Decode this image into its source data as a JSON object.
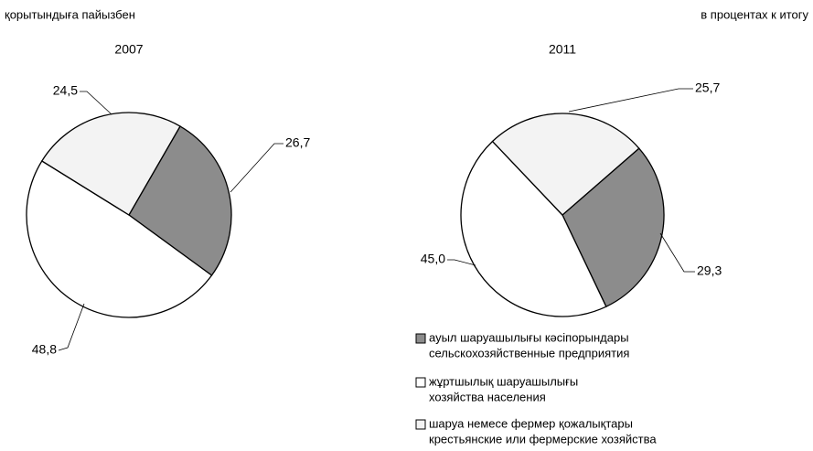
{
  "header": {
    "left": "қорытындыға пайызбен",
    "right": "в процентах к итогу"
  },
  "legend": [
    {
      "lines": [
        "ауыл шаруашылығы кәсіпорындары",
        "сельскохозяйственные предприятия"
      ],
      "color": "#8c8c8c"
    },
    {
      "lines": [
        "жұртшылық шаруашылығы",
        "хозяйства населения"
      ],
      "color": "#ffffff"
    },
    {
      "lines": [
        "шаруа немесе фермер қожалықтары",
        "крестьянские или фермерские хозяйства"
      ],
      "color": "#f3f3f3"
    }
  ],
  "chart_data": [
    {
      "type": "pie",
      "title": "2007",
      "values": [
        26.7,
        48.8,
        24.5
      ],
      "value_labels": [
        "26,7",
        "48,8",
        "24,5"
      ]
    },
    {
      "type": "pie",
      "title": "2011",
      "values": [
        29.3,
        45.0,
        25.7
      ],
      "value_labels": [
        "29,3",
        "45,0",
        "25,7"
      ]
    }
  ]
}
